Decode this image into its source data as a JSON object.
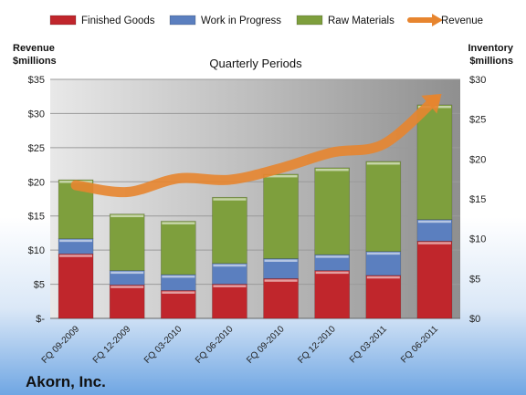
{
  "company": "Akorn, Inc.",
  "chart_data": {
    "type": "bar",
    "stacked": true,
    "subtitle": "Quarterly Periods",
    "left_axis_label": [
      "Revenue",
      "$millions"
    ],
    "right_axis_label": [
      "Inventory",
      "$millions"
    ],
    "categories": [
      "FQ 09-2009",
      "FQ 12-2009",
      "FQ 03-2010",
      "FQ 06-2010",
      "FQ 09-2010",
      "FQ 12-2010",
      "FQ 03-2011",
      "FQ 06-2011"
    ],
    "left_axis": {
      "min": 0,
      "max": 35,
      "step": 5,
      "ticks": [
        "$-",
        "$5",
        "$10",
        "$15",
        "$20",
        "$25",
        "$30",
        "$35"
      ]
    },
    "right_axis": {
      "min": 0,
      "max": 30,
      "step": 5,
      "ticks": [
        "$0",
        "$5",
        "$10",
        "$15",
        "$20",
        "$25",
        "$30"
      ]
    },
    "series": [
      {
        "name": "Finished Goods",
        "axis": "right",
        "color": "#c0262c",
        "values": [
          8.1,
          4.2,
          3.5,
          4.3,
          5.0,
          6.0,
          5.4,
          9.7
        ]
      },
      {
        "name": "Work in Progress",
        "axis": "right",
        "color": "#5b7fbf",
        "values": [
          1.9,
          1.8,
          2.0,
          2.6,
          2.5,
          2.0,
          3.0,
          2.7
        ]
      },
      {
        "name": "Raw Materials",
        "axis": "right",
        "color": "#7e9f3d",
        "values": [
          7.4,
          7.1,
          6.7,
          8.3,
          10.6,
          10.9,
          11.3,
          14.4
        ]
      },
      {
        "name": "Revenue",
        "type": "line",
        "axis": "left",
        "color": "#e7852f",
        "values": [
          19.5,
          18.5,
          20.5,
          20.3,
          22.0,
          24.3,
          25.5,
          32.0
        ]
      }
    ],
    "grid": true,
    "legend_position": "top"
  }
}
